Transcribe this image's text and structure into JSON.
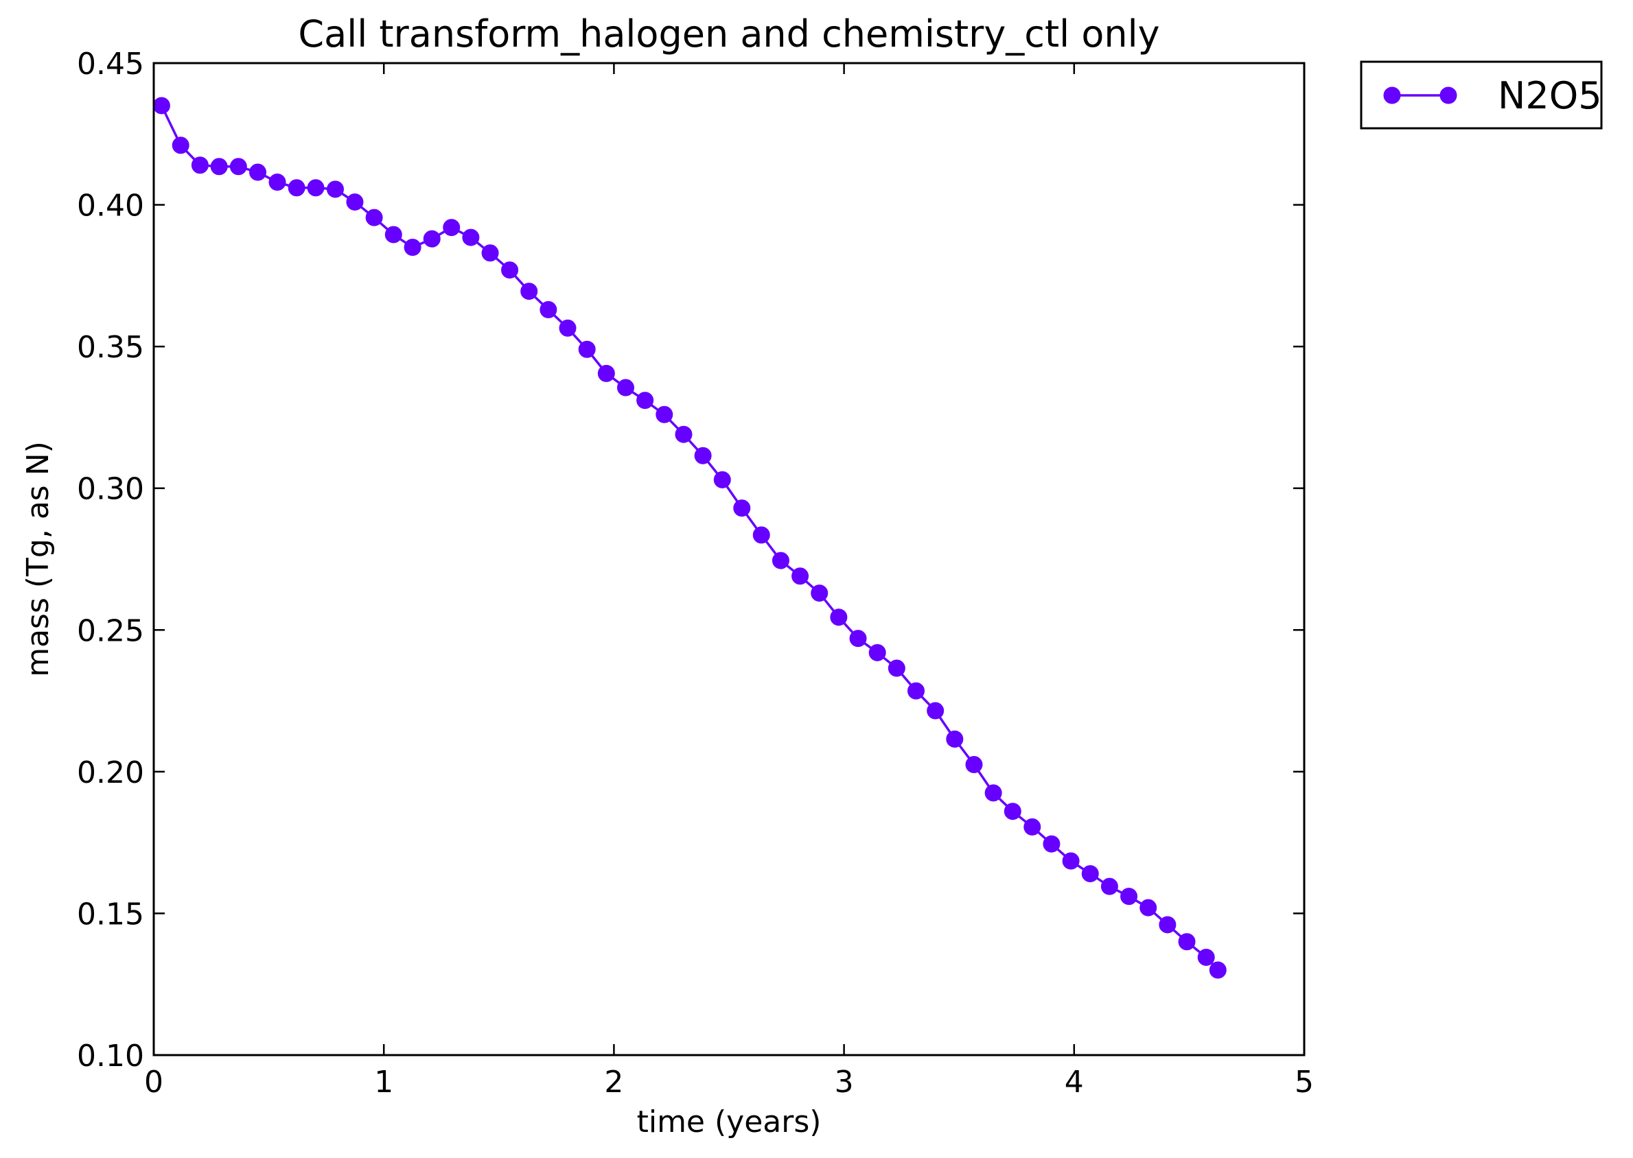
{
  "chart_data": {
    "type": "line",
    "title": "Call transform_halogen and chemistry_ctl only",
    "xlabel": "time (years)",
    "ylabel": "mass (Tg, as N)",
    "xlim": [
      0,
      5
    ],
    "ylim": [
      0.1,
      0.45
    ],
    "xticks": [
      "0",
      "1",
      "2",
      "3",
      "4",
      "5"
    ],
    "yticks": [
      "0.10",
      "0.15",
      "0.20",
      "0.25",
      "0.30",
      "0.35",
      "0.40",
      "0.45"
    ],
    "grid": false,
    "legend_position": "outside-top-right",
    "series": [
      {
        "name": "N2O5",
        "color": "#6600ff",
        "marker": "circle",
        "x": [
          0.034,
          0.117,
          0.201,
          0.284,
          0.368,
          0.452,
          0.537,
          0.621,
          0.704,
          0.789,
          0.874,
          0.958,
          1.042,
          1.125,
          1.209,
          1.294,
          1.378,
          1.462,
          1.547,
          1.631,
          1.715,
          1.799,
          1.883,
          1.967,
          2.051,
          2.135,
          2.219,
          2.303,
          2.387,
          2.471,
          2.556,
          2.641,
          2.725,
          2.809,
          2.893,
          2.977,
          3.061,
          3.145,
          3.229,
          3.313,
          3.397,
          3.481,
          3.565,
          3.649,
          3.733,
          3.818,
          3.902,
          3.986,
          4.07,
          4.154,
          4.238,
          4.322,
          4.406,
          4.49,
          4.574,
          4.625
        ],
        "values": [
          0.435,
          0.421,
          0.414,
          0.4135,
          0.4135,
          0.4115,
          0.408,
          0.406,
          0.406,
          0.4055,
          0.401,
          0.3955,
          0.3895,
          0.385,
          0.388,
          0.392,
          0.3885,
          0.383,
          0.377,
          0.3695,
          0.363,
          0.3565,
          0.349,
          0.3405,
          0.3355,
          0.331,
          0.326,
          0.319,
          0.3115,
          0.303,
          0.293,
          0.2835,
          0.2745,
          0.269,
          0.263,
          0.2545,
          0.247,
          0.242,
          0.2365,
          0.2285,
          0.2215,
          0.2115,
          0.2025,
          0.1925,
          0.186,
          0.1805,
          0.1745,
          0.1685,
          0.164,
          0.1595,
          0.156,
          0.152,
          0.146,
          0.14,
          0.1345,
          0.13
        ]
      }
    ]
  }
}
